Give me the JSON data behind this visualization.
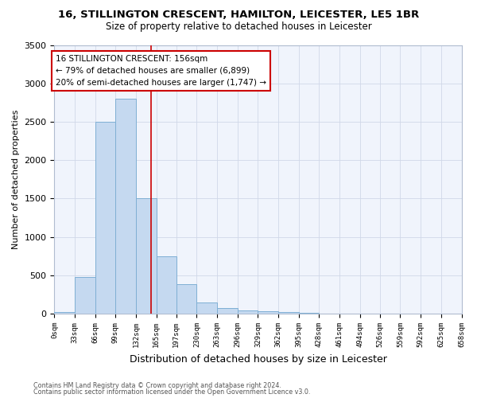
{
  "title": "16, STILLINGTON CRESCENT, HAMILTON, LEICESTER, LE5 1BR",
  "subtitle": "Size of property relative to detached houses in Leicester",
  "xlabel": "Distribution of detached houses by size in Leicester",
  "ylabel": "Number of detached properties",
  "bin_edges": [
    0,
    33,
    66,
    99,
    132,
    165,
    197,
    230,
    263,
    296,
    329,
    362,
    395,
    428,
    461,
    494,
    526,
    559,
    592,
    625,
    658
  ],
  "bin_counts": [
    20,
    480,
    2500,
    2800,
    1500,
    750,
    390,
    145,
    70,
    40,
    30,
    20,
    10,
    5,
    5,
    0,
    0,
    0,
    0,
    0
  ],
  "bar_color": "#c5d9f0",
  "bar_edge_color": "#7fafd4",
  "property_size": 156,
  "vline_color": "#cc0000",
  "annotation_line1": "16 STILLINGTON CRESCENT: 156sqm",
  "annotation_line2": "← 79% of detached houses are smaller (6,899)",
  "annotation_line3": "20% of semi-detached houses are larger (1,747) →",
  "annotation_box_edge": "#cc0000",
  "ylim": [
    0,
    3500
  ],
  "yticks": [
    0,
    500,
    1000,
    1500,
    2000,
    2500,
    3000,
    3500
  ],
  "tick_labels": [
    "0sqm",
    "33sqm",
    "66sqm",
    "99sqm",
    "132sqm",
    "165sqm",
    "197sqm",
    "230sqm",
    "263sqm",
    "296sqm",
    "329sqm",
    "362sqm",
    "395sqm",
    "428sqm",
    "461sqm",
    "494sqm",
    "526sqm",
    "559sqm",
    "592sqm",
    "625sqm",
    "658sqm"
  ],
  "footer_line1": "Contains HM Land Registry data © Crown copyright and database right 2024.",
  "footer_line2": "Contains public sector information licensed under the Open Government Licence v3.0.",
  "bg_color": "#ffffff",
  "plot_bg_color": "#f0f4fc",
  "grid_color": "#d0d8e8"
}
